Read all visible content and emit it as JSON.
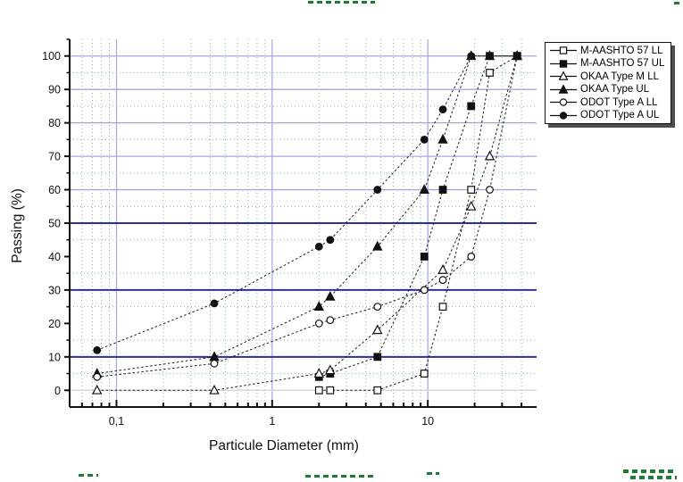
{
  "figure": {
    "background": "#ffffff",
    "x_axis": {
      "title": "Particule Diameter (mm)",
      "scale": "log",
      "range": [
        0.05,
        50
      ],
      "major_ticks": [
        0.1,
        1,
        10
      ],
      "major_tick_labels": [
        "0,1",
        "1",
        "10"
      ],
      "minor_ticks": [
        0.06,
        0.07,
        0.08,
        0.09,
        0.2,
        0.3,
        0.4,
        0.5,
        0.6,
        0.7,
        0.8,
        0.9,
        2,
        3,
        4,
        5,
        6,
        7,
        8,
        9,
        20,
        30,
        40
      ]
    },
    "y_axis": {
      "title": "Passing (%)",
      "range": [
        -5,
        105
      ],
      "major_ticks": [
        0,
        10,
        20,
        30,
        40,
        50,
        60,
        70,
        80,
        90,
        100
      ],
      "major_tick_labels": [
        "0",
        "10",
        "20",
        "30",
        "40",
        "50",
        "60",
        "70",
        "80",
        "90",
        "100"
      ],
      "minor_ticks": [
        5,
        15,
        25,
        35,
        45,
        55,
        65,
        75,
        85,
        95,
        105
      ]
    },
    "grid": {
      "minor_color": "#6cc98b",
      "major_light_color": "#a3a8d8",
      "major_dark_color": "#2c2f9e",
      "zero_line_color": "#d9d9d9",
      "horizontal_light_lines": [
        60,
        70,
        80,
        90,
        100
      ],
      "horizontal_dark_lines": [
        10,
        30,
        50
      ],
      "horizontal_zero_lines": [
        0
      ],
      "vertical_light_lines": [
        0.1,
        1,
        10
      ]
    },
    "axis_color": "#111111",
    "series_line_color": "#1a1a1a"
  },
  "chart_data": {
    "type": "line",
    "title": "",
    "xlabel": "Particule Diameter (mm)",
    "ylabel": "Passing (%)",
    "x_scale": "log",
    "xlim": [
      0.05,
      50
    ],
    "ylim": [
      -5,
      105
    ],
    "grid": "on",
    "legend_position": "top-right-outside",
    "sieve_sizes_mm": [
      0.075,
      0.425,
      2,
      2.36,
      4.75,
      9.5,
      12.5,
      19,
      25,
      37.5
    ],
    "series": [
      {
        "name": "M-AASHTO 57 LL",
        "marker": "square-open",
        "points": [
          [
            2,
            0
          ],
          [
            2.36,
            0
          ],
          [
            4.75,
            0
          ],
          [
            9.5,
            5
          ],
          [
            12.5,
            25
          ],
          [
            19,
            60
          ],
          [
            25,
            95
          ],
          [
            37.5,
            100
          ]
        ]
      },
      {
        "name": "M-AASHTO 57 UL",
        "marker": "square-filled",
        "points": [
          [
            2,
            4
          ],
          [
            2.36,
            5
          ],
          [
            4.75,
            10
          ],
          [
            9.5,
            40
          ],
          [
            12.5,
            60
          ],
          [
            19,
            85
          ],
          [
            25,
            100
          ],
          [
            37.5,
            100
          ]
        ]
      },
      {
        "name": "OKAA Type M LL",
        "marker": "triangle-open",
        "points": [
          [
            0.075,
            0
          ],
          [
            0.425,
            0
          ],
          [
            2,
            5
          ],
          [
            2.36,
            6
          ],
          [
            4.75,
            18
          ],
          [
            12.5,
            36
          ],
          [
            19,
            55
          ],
          [
            25,
            70
          ],
          [
            37.5,
            100
          ]
        ]
      },
      {
        "name": "OKAA Type UL",
        "marker": "triangle-filled",
        "points": [
          [
            0.075,
            5
          ],
          [
            0.425,
            10
          ],
          [
            2,
            25
          ],
          [
            2.36,
            28
          ],
          [
            4.75,
            43
          ],
          [
            9.5,
            60
          ],
          [
            12.5,
            75
          ],
          [
            19,
            100
          ],
          [
            25,
            100
          ],
          [
            37.5,
            100
          ]
        ]
      },
      {
        "name": "ODOT Type A LL",
        "marker": "circle-open",
        "points": [
          [
            0.075,
            4
          ],
          [
            0.425,
            8
          ],
          [
            2,
            20
          ],
          [
            2.36,
            21
          ],
          [
            4.75,
            25
          ],
          [
            9.5,
            30
          ],
          [
            12.5,
            33
          ],
          [
            19,
            40
          ],
          [
            25,
            60
          ],
          [
            37.5,
            100
          ]
        ]
      },
      {
        "name": "ODOT Type A UL",
        "marker": "circle-filled",
        "points": [
          [
            0.075,
            12
          ],
          [
            0.425,
            26
          ],
          [
            2,
            43
          ],
          [
            2.36,
            45
          ],
          [
            4.75,
            60
          ],
          [
            9.5,
            75
          ],
          [
            12.5,
            84
          ],
          [
            19,
            100
          ],
          [
            25,
            100
          ],
          [
            37.5,
            100
          ]
        ]
      }
    ]
  }
}
